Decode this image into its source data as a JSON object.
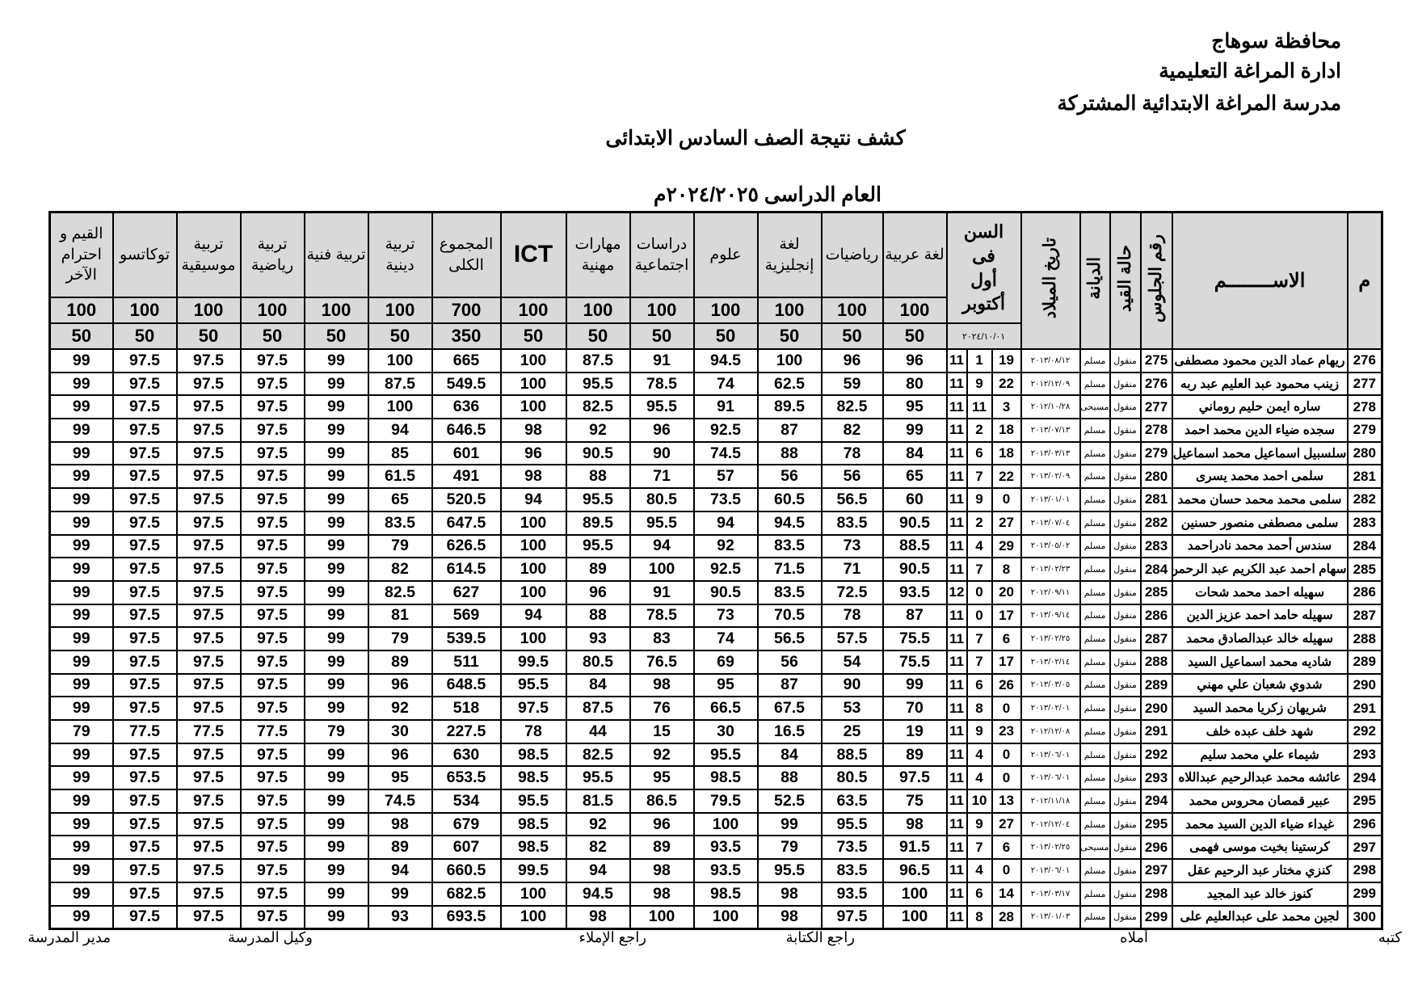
{
  "header": {
    "governorate": "محافظة سوهاج",
    "administration": "ادارة المراغة التعليمية",
    "school": "مدرسة المراغة الابتدائية المشتركة",
    "title": "كشف نتيجة الصف السادس الابتدائى",
    "year": "العام الدراسى ٢٠٢٤/٢٠٢٥م"
  },
  "columns": {
    "serial": "م",
    "name": "الاســــــــم",
    "seat": "رقم الجلوس",
    "status": "حالة القيد",
    "religion": "الديانة",
    "dob": "تاريخ الميلاد",
    "age": "السن فى أول أكتوبر",
    "age_date": "٢٠٢٤/١٠/٠١",
    "subjects": [
      {
        "label": "لغة عربية",
        "max": "100",
        "min": "50"
      },
      {
        "label": "رياضيات",
        "max": "100",
        "min": "50"
      },
      {
        "label": "لغة إنجليزية",
        "max": "100",
        "min": "50"
      },
      {
        "label": "علوم",
        "max": "100",
        "min": "50"
      },
      {
        "label": "دراسات اجتماعية",
        "max": "100",
        "min": "50"
      },
      {
        "label": "مهارات مهنية",
        "max": "100",
        "min": "50"
      },
      {
        "label": "ICT",
        "max": "100",
        "min": "50"
      },
      {
        "label": "المجموع الكلى",
        "max": "700",
        "min": "350"
      },
      {
        "label": "تربية دينية",
        "max": "100",
        "min": "50"
      },
      {
        "label": "تربية فنية",
        "max": "100",
        "min": "50"
      },
      {
        "label": "تربية رياضية",
        "max": "100",
        "min": "50"
      },
      {
        "label": "تربية موسيقية",
        "max": "100",
        "min": "50"
      },
      {
        "label": "توكاتسو",
        "max": "100",
        "min": "50"
      },
      {
        "label": "القيم و احترام الآخر",
        "max": "100",
        "min": "50"
      }
    ]
  },
  "rows": [
    {
      "n": "276",
      "name": "ريهام عماد الدين محمود مصطفى",
      "seat": "275",
      "status": "منقول",
      "religion": "مسلم",
      "dob": "٢٠١٣/٠٨/١٢",
      "d": "19",
      "m": "1",
      "y": "11",
      "g": [
        "96",
        "96",
        "100",
        "94.5",
        "91",
        "87.5",
        "100",
        "665",
        "100",
        "99",
        "97.5",
        "97.5",
        "97.5",
        "99"
      ]
    },
    {
      "n": "277",
      "name": "زينب محمود عبد العليم عبد ربه",
      "seat": "276",
      "status": "منقول",
      "religion": "مسلم",
      "dob": "٢٠١٢/١٢/٠٩",
      "d": "22",
      "m": "9",
      "y": "11",
      "g": [
        "80",
        "59",
        "62.5",
        "74",
        "78.5",
        "95.5",
        "100",
        "549.5",
        "87.5",
        "99",
        "97.5",
        "97.5",
        "97.5",
        "99"
      ]
    },
    {
      "n": "278",
      "name": "ساره ايمن حليم روماني",
      "seat": "277",
      "status": "منقول",
      "religion": "مسيحى",
      "dob": "٢٠١٢/١٠/٢٨",
      "d": "3",
      "m": "11",
      "y": "11",
      "g": [
        "95",
        "82.5",
        "89.5",
        "91",
        "95.5",
        "82.5",
        "100",
        "636",
        "100",
        "99",
        "97.5",
        "97.5",
        "97.5",
        "99"
      ]
    },
    {
      "n": "279",
      "name": "سجده ضياء الدين محمد احمد",
      "seat": "278",
      "status": "منقول",
      "religion": "مسلم",
      "dob": "٢٠١٣/٠٧/١٣",
      "d": "18",
      "m": "2",
      "y": "11",
      "g": [
        "99",
        "82",
        "87",
        "92.5",
        "96",
        "92",
        "98",
        "646.5",
        "94",
        "99",
        "97.5",
        "97.5",
        "97.5",
        "99"
      ]
    },
    {
      "n": "280",
      "name": "سلسبيل اسماعيل محمد اسماعيل",
      "seat": "279",
      "status": "منقول",
      "religion": "مسلم",
      "dob": "٢٠١٣/٠٣/١٣",
      "d": "18",
      "m": "6",
      "y": "11",
      "g": [
        "84",
        "78",
        "88",
        "74.5",
        "90",
        "90.5",
        "96",
        "601",
        "85",
        "99",
        "97.5",
        "97.5",
        "97.5",
        "99"
      ]
    },
    {
      "n": "281",
      "name": "سلمى احمد محمد يسرى",
      "seat": "280",
      "status": "منقول",
      "religion": "مسلم",
      "dob": "٢٠١٣/٠٢/٠٩",
      "d": "22",
      "m": "7",
      "y": "11",
      "g": [
        "65",
        "56",
        "56",
        "57",
        "71",
        "88",
        "98",
        "491",
        "61.5",
        "99",
        "97.5",
        "97.5",
        "97.5",
        "99"
      ]
    },
    {
      "n": "282",
      "name": "سلمى محمد محمد حسان محمد",
      "seat": "281",
      "status": "منقول",
      "religion": "مسلم",
      "dob": "٢٠١٣/٠١/٠١",
      "d": "0",
      "m": "9",
      "y": "11",
      "g": [
        "60",
        "56.5",
        "60.5",
        "73.5",
        "80.5",
        "95.5",
        "94",
        "520.5",
        "65",
        "99",
        "97.5",
        "97.5",
        "97.5",
        "99"
      ]
    },
    {
      "n": "283",
      "name": "سلمى مصطفى منصور حسنين",
      "seat": "282",
      "status": "منقول",
      "religion": "مسلم",
      "dob": "٢٠١٣/٠٧/٠٤",
      "d": "27",
      "m": "2",
      "y": "11",
      "g": [
        "90.5",
        "83.5",
        "94.5",
        "94",
        "95.5",
        "89.5",
        "100",
        "647.5",
        "83.5",
        "99",
        "97.5",
        "97.5",
        "97.5",
        "99"
      ]
    },
    {
      "n": "284",
      "name": "سندس أحمد محمد نادراحمد",
      "seat": "283",
      "status": "منقول",
      "religion": "مسلم",
      "dob": "٢٠١٣/٠٥/٠٢",
      "d": "29",
      "m": "4",
      "y": "11",
      "g": [
        "88.5",
        "73",
        "83.5",
        "92",
        "94",
        "95.5",
        "100",
        "626.5",
        "79",
        "99",
        "97.5",
        "97.5",
        "97.5",
        "99"
      ]
    },
    {
      "n": "285",
      "name": "سهام احمد عبد الكريم عبد الرحمن",
      "seat": "284",
      "status": "منقول",
      "religion": "مسلم",
      "dob": "٢٠١٣/٠٢/٢٣",
      "d": "8",
      "m": "7",
      "y": "11",
      "g": [
        "90.5",
        "71",
        "71.5",
        "92.5",
        "100",
        "89",
        "100",
        "614.5",
        "82",
        "99",
        "97.5",
        "97.5",
        "97.5",
        "99"
      ]
    },
    {
      "n": "286",
      "name": "سهيله احمد محمد شحات",
      "seat": "285",
      "status": "منقول",
      "religion": "مسلم",
      "dob": "٢٠١٢/٠٩/١١",
      "d": "20",
      "m": "0",
      "y": "12",
      "g": [
        "93.5",
        "72.5",
        "83.5",
        "90.5",
        "91",
        "96",
        "100",
        "627",
        "82.5",
        "99",
        "97.5",
        "97.5",
        "97.5",
        "99"
      ]
    },
    {
      "n": "287",
      "name": "سهيله حامد احمد عزيز الدين",
      "seat": "286",
      "status": "منقول",
      "religion": "مسلم",
      "dob": "٢٠١٣/٠٩/١٤",
      "d": "17",
      "m": "0",
      "y": "11",
      "g": [
        "87",
        "78",
        "70.5",
        "73",
        "78.5",
        "88",
        "94",
        "569",
        "81",
        "99",
        "97.5",
        "97.5",
        "97.5",
        "99"
      ]
    },
    {
      "n": "288",
      "name": "سهيله خالد عبدالصادق محمد",
      "seat": "287",
      "status": "منقول",
      "religion": "مسلم",
      "dob": "٢٠١٣/٠٢/٢٥",
      "d": "6",
      "m": "7",
      "y": "11",
      "g": [
        "75.5",
        "57.5",
        "56.5",
        "74",
        "83",
        "93",
        "100",
        "539.5",
        "79",
        "99",
        "97.5",
        "97.5",
        "97.5",
        "99"
      ]
    },
    {
      "n": "289",
      "name": "شاديه محمد اسماعيل السيد",
      "seat": "288",
      "status": "منقول",
      "religion": "مسلم",
      "dob": "٢٠١٣/٠٢/١٤",
      "d": "17",
      "m": "7",
      "y": "11",
      "g": [
        "75.5",
        "54",
        "56",
        "69",
        "76.5",
        "80.5",
        "99.5",
        "511",
        "89",
        "99",
        "97.5",
        "97.5",
        "97.5",
        "99"
      ]
    },
    {
      "n": "290",
      "name": "شدوي شعبان علي مهني",
      "seat": "289",
      "status": "منقول",
      "religion": "مسلم",
      "dob": "٢٠١٣/٠٣/٠٥",
      "d": "26",
      "m": "6",
      "y": "11",
      "g": [
        "99",
        "90",
        "87",
        "95",
        "98",
        "84",
        "95.5",
        "648.5",
        "96",
        "99",
        "97.5",
        "97.5",
        "97.5",
        "99"
      ]
    },
    {
      "n": "291",
      "name": "شريهان زكريا محمد السيد",
      "seat": "290",
      "status": "منقول",
      "religion": "مسلم",
      "dob": "٢٠١٣/٠٢/٠١",
      "d": "0",
      "m": "8",
      "y": "11",
      "g": [
        "70",
        "53",
        "67.5",
        "66.5",
        "76",
        "87.5",
        "97.5",
        "518",
        "92",
        "99",
        "97.5",
        "97.5",
        "97.5",
        "99"
      ]
    },
    {
      "n": "292",
      "name": "شهد خلف عبده خلف",
      "seat": "291",
      "status": "منقول",
      "religion": "مسلم",
      "dob": "٢٠١٢/١٢/٠٨",
      "d": "23",
      "m": "9",
      "y": "11",
      "g": [
        "19",
        "25",
        "16.5",
        "30",
        "15",
        "44",
        "78",
        "227.5",
        "30",
        "79",
        "77.5",
        "77.5",
        "77.5",
        "79"
      ]
    },
    {
      "n": "293",
      "name": "شيماء علي محمد سليم",
      "seat": "292",
      "status": "منقول",
      "religion": "مسلم",
      "dob": "٢٠١٣/٠٦/٠١",
      "d": "0",
      "m": "4",
      "y": "11",
      "g": [
        "89",
        "88.5",
        "84",
        "95.5",
        "92",
        "82.5",
        "98.5",
        "630",
        "96",
        "99",
        "97.5",
        "97.5",
        "97.5",
        "99"
      ]
    },
    {
      "n": "294",
      "name": "عائشه محمد عبدالرحيم عبداللاه",
      "seat": "293",
      "status": "منقول",
      "religion": "مسلم",
      "dob": "٢٠١٣/٠٦/٠١",
      "d": "0",
      "m": "4",
      "y": "11",
      "g": [
        "97.5",
        "80.5",
        "88",
        "98.5",
        "95",
        "95.5",
        "98.5",
        "653.5",
        "95",
        "99",
        "97.5",
        "97.5",
        "97.5",
        "99"
      ]
    },
    {
      "n": "295",
      "name": "عبير قمصان محروس محمد",
      "seat": "294",
      "status": "منقول",
      "religion": "مسلم",
      "dob": "٢٠١٢/١١/١٨",
      "d": "13",
      "m": "10",
      "y": "11",
      "g": [
        "75",
        "63.5",
        "52.5",
        "79.5",
        "86.5",
        "81.5",
        "95.5",
        "534",
        "74.5",
        "99",
        "97.5",
        "97.5",
        "97.5",
        "99"
      ]
    },
    {
      "n": "296",
      "name": "غيداء ضياء الدين السيد محمد",
      "seat": "295",
      "status": "منقول",
      "religion": "مسلم",
      "dob": "٢٠١٢/١٢/٠٤",
      "d": "27",
      "m": "9",
      "y": "11",
      "g": [
        "98",
        "95.5",
        "99",
        "100",
        "96",
        "92",
        "98.5",
        "679",
        "98",
        "99",
        "97.5",
        "97.5",
        "97.5",
        "99"
      ]
    },
    {
      "n": "297",
      "name": "كرستينا بخيت موسى فهمى",
      "seat": "296",
      "status": "منقول",
      "religion": "مسيحى",
      "dob": "٢٠١٣/٠٢/٢٥",
      "d": "6",
      "m": "7",
      "y": "11",
      "g": [
        "91.5",
        "73.5",
        "79",
        "93.5",
        "89",
        "82",
        "98.5",
        "607",
        "89",
        "99",
        "97.5",
        "97.5",
        "97.5",
        "99"
      ]
    },
    {
      "n": "298",
      "name": "كنزي مختار عبد الرحيم عقل",
      "seat": "297",
      "status": "منقول",
      "religion": "مسلم",
      "dob": "٢٠١٣/٠٦/٠١",
      "d": "0",
      "m": "4",
      "y": "11",
      "g": [
        "96.5",
        "83.5",
        "95.5",
        "93.5",
        "98",
        "94",
        "99.5",
        "660.5",
        "94",
        "99",
        "97.5",
        "97.5",
        "97.5",
        "99"
      ]
    },
    {
      "n": "299",
      "name": "كنوز خالد عبد المجيد",
      "seat": "298",
      "status": "منقول",
      "religion": "مسلم",
      "dob": "٢٠١٣/٠٣/١٧",
      "d": "14",
      "m": "6",
      "y": "11",
      "g": [
        "100",
        "93.5",
        "98",
        "98.5",
        "98",
        "94.5",
        "100",
        "682.5",
        "99",
        "99",
        "97.5",
        "97.5",
        "97.5",
        "99"
      ]
    },
    {
      "n": "300",
      "name": "لجين محمد على عبدالعليم على",
      "seat": "299",
      "status": "منقول",
      "religion": "مسلم",
      "dob": "٢٠١٣/٠١/٠٣",
      "d": "28",
      "m": "8",
      "y": "11",
      "g": [
        "100",
        "97.5",
        "98",
        "100",
        "100",
        "98",
        "100",
        "693.5",
        "93",
        "99",
        "97.5",
        "97.5",
        "97.5",
        "99"
      ]
    }
  ],
  "footer": {
    "written_by": "كتبه",
    "dictated_by": "أملاه",
    "writing_reviewed": "راجع الكتابة",
    "dictation_reviewed": "راجع الإملاء",
    "deputy": "وكيل المدرسة",
    "principal": "مدير المدرسة"
  },
  "colors": {
    "header_bg": "#d9d9d9",
    "border": "#000000"
  }
}
